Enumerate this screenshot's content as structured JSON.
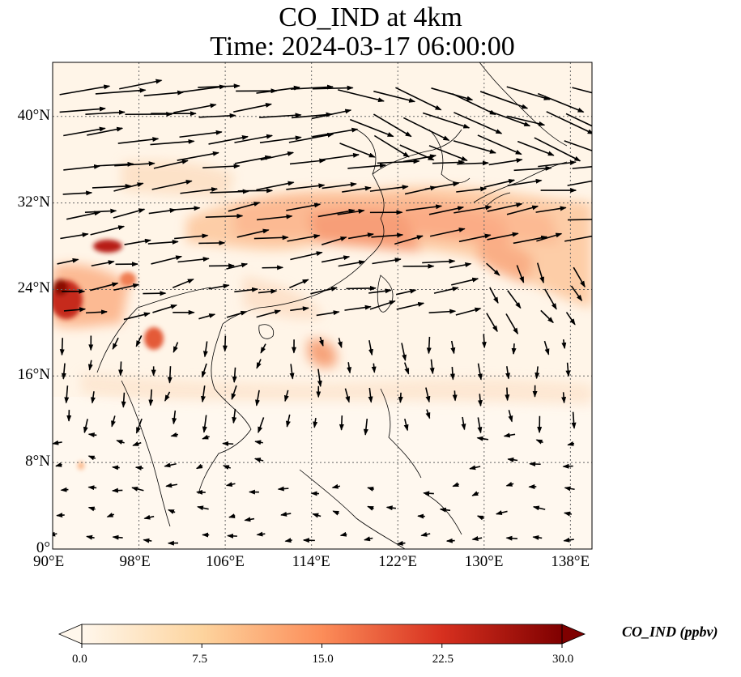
{
  "title_line1": "CO_IND at 4km",
  "title_line2": "Time: 2024-03-17 06:00:00",
  "map": {
    "lon_range": [
      90,
      140
    ],
    "lat_range": [
      0,
      45
    ],
    "gridlines": true,
    "x_ticks": [
      "90°E",
      "98°E",
      "106°E",
      "114°E",
      "122°E",
      "130°E",
      "138°E"
    ],
    "y_ticks": [
      "0°",
      "8°N",
      "16°N",
      "24°N",
      "32°N",
      "40°N"
    ]
  },
  "colorbar": {
    "label": "CO_IND (ppbv)",
    "ticks": [
      "0.0",
      "7.5",
      "15.0",
      "22.5",
      "30.0"
    ],
    "range": [
      0,
      30
    ],
    "colormap": [
      "#fff7ec",
      "#fdd49e",
      "#fc8d59",
      "#d7301f",
      "#7f0000"
    ],
    "extend": "both"
  }
}
